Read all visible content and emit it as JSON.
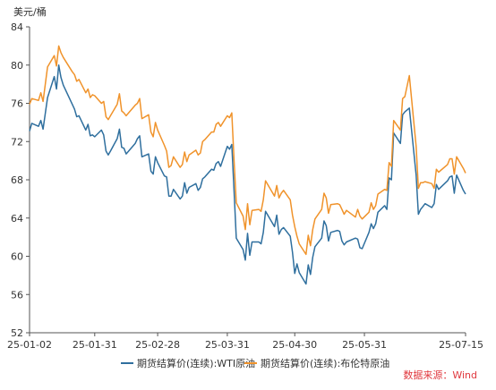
{
  "chart_data": {
    "type": "line",
    "unit_label": "美元/桶",
    "ylim": [
      52,
      84
    ],
    "y_ticks": [
      52,
      56,
      60,
      64,
      68,
      72,
      76,
      80,
      84
    ],
    "x_range": [
      "2025-01-02",
      "2025-07-15"
    ],
    "x_ticks": [
      {
        "date": "2025-01-02",
        "label": "25-01-02"
      },
      {
        "date": "2025-01-31",
        "label": "25-01-31"
      },
      {
        "date": "2025-02-28",
        "label": "25-02-28"
      },
      {
        "date": "2025-03-31",
        "label": "25-03-31"
      },
      {
        "date": "2025-04-30",
        "label": "25-04-30"
      },
      {
        "date": "2025-05-31",
        "label": "25-05-31"
      },
      {
        "date": "2025-07-15",
        "label": "25-07-15"
      }
    ],
    "grid": false,
    "legend_position": "bottom",
    "source_note": "数据来源：Wind",
    "series": [
      {
        "name": "期货结算价(连续):WTI原油",
        "color": "#2f6f9e",
        "points": [
          [
            "2025-01-02",
            73.1
          ],
          [
            "2025-01-03",
            73.9
          ],
          [
            "2025-01-06",
            73.6
          ],
          [
            "2025-01-07",
            74.2
          ],
          [
            "2025-01-08",
            73.3
          ],
          [
            "2025-01-10",
            76.6
          ],
          [
            "2025-01-13",
            78.8
          ],
          [
            "2025-01-14",
            77.5
          ],
          [
            "2025-01-15",
            80.0
          ],
          [
            "2025-01-16",
            78.7
          ],
          [
            "2025-01-17",
            77.9
          ],
          [
            "2025-01-21",
            75.9
          ],
          [
            "2025-01-22",
            75.4
          ],
          [
            "2025-01-23",
            74.6
          ],
          [
            "2025-01-24",
            74.7
          ],
          [
            "2025-01-27",
            73.2
          ],
          [
            "2025-01-28",
            73.8
          ],
          [
            "2025-01-29",
            72.6
          ],
          [
            "2025-01-30",
            72.7
          ],
          [
            "2025-01-31",
            72.5
          ],
          [
            "2025-02-03",
            73.2
          ],
          [
            "2025-02-04",
            72.7
          ],
          [
            "2025-02-05",
            71.0
          ],
          [
            "2025-02-06",
            70.6
          ],
          [
            "2025-02-07",
            71.0
          ],
          [
            "2025-02-10",
            72.3
          ],
          [
            "2025-02-11",
            73.3
          ],
          [
            "2025-02-12",
            71.4
          ],
          [
            "2025-02-13",
            71.3
          ],
          [
            "2025-02-14",
            70.7
          ],
          [
            "2025-02-18",
            71.8
          ],
          [
            "2025-02-19",
            72.3
          ],
          [
            "2025-02-20",
            72.6
          ],
          [
            "2025-02-21",
            70.4
          ],
          [
            "2025-02-24",
            70.7
          ],
          [
            "2025-02-25",
            68.9
          ],
          [
            "2025-02-26",
            68.6
          ],
          [
            "2025-02-27",
            70.4
          ],
          [
            "2025-02-28",
            69.8
          ],
          [
            "2025-03-03",
            68.4
          ],
          [
            "2025-03-04",
            68.3
          ],
          [
            "2025-03-05",
            66.3
          ],
          [
            "2025-03-06",
            66.3
          ],
          [
            "2025-03-07",
            67.0
          ],
          [
            "2025-03-10",
            66.0
          ],
          [
            "2025-03-11",
            66.3
          ],
          [
            "2025-03-12",
            67.7
          ],
          [
            "2025-03-13",
            66.6
          ],
          [
            "2025-03-14",
            67.2
          ],
          [
            "2025-03-17",
            67.6
          ],
          [
            "2025-03-18",
            66.9
          ],
          [
            "2025-03-19",
            67.2
          ],
          [
            "2025-03-20",
            68.1
          ],
          [
            "2025-03-21",
            68.3
          ],
          [
            "2025-03-24",
            69.1
          ],
          [
            "2025-03-25",
            69.0
          ],
          [
            "2025-03-26",
            69.7
          ],
          [
            "2025-03-27",
            69.9
          ],
          [
            "2025-03-28",
            69.4
          ],
          [
            "2025-03-31",
            71.5
          ],
          [
            "2025-04-01",
            71.2
          ],
          [
            "2025-04-02",
            71.7
          ],
          [
            "2025-04-03",
            66.9
          ],
          [
            "2025-04-04",
            61.9
          ],
          [
            "2025-04-07",
            60.7
          ],
          [
            "2025-04-08",
            59.6
          ],
          [
            "2025-04-09",
            62.4
          ],
          [
            "2025-04-10",
            60.1
          ],
          [
            "2025-04-11",
            61.5
          ],
          [
            "2025-04-14",
            61.5
          ],
          [
            "2025-04-15",
            61.3
          ],
          [
            "2025-04-16",
            62.5
          ],
          [
            "2025-04-17",
            64.7
          ],
          [
            "2025-04-21",
            63.1
          ],
          [
            "2025-04-22",
            64.3
          ],
          [
            "2025-04-23",
            62.3
          ],
          [
            "2025-04-24",
            62.8
          ],
          [
            "2025-04-25",
            63.0
          ],
          [
            "2025-04-28",
            62.1
          ],
          [
            "2025-04-29",
            60.4
          ],
          [
            "2025-04-30",
            58.2
          ],
          [
            "2025-05-01",
            59.2
          ],
          [
            "2025-05-02",
            58.3
          ],
          [
            "2025-05-05",
            57.1
          ],
          [
            "2025-05-06",
            59.1
          ],
          [
            "2025-05-07",
            58.1
          ],
          [
            "2025-05-08",
            59.9
          ],
          [
            "2025-05-09",
            61.0
          ],
          [
            "2025-05-12",
            61.9
          ],
          [
            "2025-05-13",
            63.7
          ],
          [
            "2025-05-14",
            63.2
          ],
          [
            "2025-05-15",
            61.6
          ],
          [
            "2025-05-16",
            62.5
          ],
          [
            "2025-05-19",
            62.7
          ],
          [
            "2025-05-20",
            62.6
          ],
          [
            "2025-05-21",
            61.6
          ],
          [
            "2025-05-22",
            61.2
          ],
          [
            "2025-05-23",
            61.5
          ],
          [
            "2025-05-27",
            61.9
          ],
          [
            "2025-05-28",
            61.8
          ],
          [
            "2025-05-29",
            60.9
          ],
          [
            "2025-05-30",
            60.8
          ],
          [
            "2025-06-02",
            62.5
          ],
          [
            "2025-06-03",
            63.4
          ],
          [
            "2025-06-04",
            62.9
          ],
          [
            "2025-06-05",
            63.4
          ],
          [
            "2025-06-06",
            64.6
          ],
          [
            "2025-06-09",
            65.3
          ],
          [
            "2025-06-10",
            64.9
          ],
          [
            "2025-06-11",
            68.2
          ],
          [
            "2025-06-12",
            68.0
          ],
          [
            "2025-06-13",
            72.9
          ],
          [
            "2025-06-16",
            71.8
          ],
          [
            "2025-06-17",
            74.8
          ],
          [
            "2025-06-18",
            75.1
          ],
          [
            "2025-06-20",
            75.5
          ],
          [
            "2025-06-23",
            68.5
          ],
          [
            "2025-06-24",
            64.4
          ],
          [
            "2025-06-25",
            64.9
          ],
          [
            "2025-06-26",
            65.2
          ],
          [
            "2025-06-27",
            65.5
          ],
          [
            "2025-06-30",
            65.1
          ],
          [
            "2025-07-01",
            65.5
          ],
          [
            "2025-07-02",
            67.5
          ],
          [
            "2025-07-03",
            67.0
          ],
          [
            "2025-07-07",
            67.9
          ],
          [
            "2025-07-08",
            68.3
          ],
          [
            "2025-07-09",
            68.4
          ],
          [
            "2025-07-10",
            66.6
          ],
          [
            "2025-07-11",
            68.5
          ],
          [
            "2025-07-14",
            66.9
          ],
          [
            "2025-07-15",
            66.5
          ]
        ]
      },
      {
        "name": "期货结算价(连续):布伦特原油",
        "color": "#f0932b",
        "points": [
          [
            "2025-01-02",
            75.9
          ],
          [
            "2025-01-03",
            76.5
          ],
          [
            "2025-01-06",
            76.3
          ],
          [
            "2025-01-07",
            77.1
          ],
          [
            "2025-01-08",
            76.2
          ],
          [
            "2025-01-10",
            79.8
          ],
          [
            "2025-01-13",
            81.0
          ],
          [
            "2025-01-14",
            79.9
          ],
          [
            "2025-01-15",
            82.0
          ],
          [
            "2025-01-16",
            81.3
          ],
          [
            "2025-01-17",
            80.8
          ],
          [
            "2025-01-21",
            79.3
          ],
          [
            "2025-01-22",
            79.0
          ],
          [
            "2025-01-23",
            78.3
          ],
          [
            "2025-01-24",
            78.5
          ],
          [
            "2025-01-27",
            77.1
          ],
          [
            "2025-01-28",
            77.5
          ],
          [
            "2025-01-29",
            76.6
          ],
          [
            "2025-01-30",
            76.9
          ],
          [
            "2025-01-31",
            76.8
          ],
          [
            "2025-02-03",
            76.0
          ],
          [
            "2025-02-04",
            76.2
          ],
          [
            "2025-02-05",
            74.6
          ],
          [
            "2025-02-06",
            74.3
          ],
          [
            "2025-02-07",
            74.7
          ],
          [
            "2025-02-10",
            75.9
          ],
          [
            "2025-02-11",
            77.0
          ],
          [
            "2025-02-12",
            75.2
          ],
          [
            "2025-02-13",
            75.0
          ],
          [
            "2025-02-14",
            74.7
          ],
          [
            "2025-02-18",
            75.8
          ],
          [
            "2025-02-19",
            76.0
          ],
          [
            "2025-02-20",
            76.5
          ],
          [
            "2025-02-21",
            74.4
          ],
          [
            "2025-02-24",
            74.8
          ],
          [
            "2025-02-25",
            73.0
          ],
          [
            "2025-02-26",
            72.5
          ],
          [
            "2025-02-27",
            74.0
          ],
          [
            "2025-02-28",
            73.2
          ],
          [
            "2025-03-03",
            71.6
          ],
          [
            "2025-03-04",
            71.0
          ],
          [
            "2025-03-05",
            69.3
          ],
          [
            "2025-03-06",
            69.5
          ],
          [
            "2025-03-07",
            70.4
          ],
          [
            "2025-03-10",
            69.3
          ],
          [
            "2025-03-11",
            69.6
          ],
          [
            "2025-03-12",
            70.9
          ],
          [
            "2025-03-13",
            69.9
          ],
          [
            "2025-03-14",
            70.6
          ],
          [
            "2025-03-17",
            71.1
          ],
          [
            "2025-03-18",
            70.6
          ],
          [
            "2025-03-19",
            70.8
          ],
          [
            "2025-03-20",
            72.0
          ],
          [
            "2025-03-21",
            72.2
          ],
          [
            "2025-03-24",
            73.0
          ],
          [
            "2025-03-25",
            73.0
          ],
          [
            "2025-03-26",
            73.8
          ],
          [
            "2025-03-27",
            74.0
          ],
          [
            "2025-03-28",
            73.6
          ],
          [
            "2025-03-31",
            74.7
          ],
          [
            "2025-04-01",
            74.5
          ],
          [
            "2025-04-02",
            75.0
          ],
          [
            "2025-04-03",
            70.1
          ],
          [
            "2025-04-04",
            65.6
          ],
          [
            "2025-04-07",
            64.2
          ],
          [
            "2025-04-08",
            62.8
          ],
          [
            "2025-04-09",
            65.5
          ],
          [
            "2025-04-10",
            63.3
          ],
          [
            "2025-04-11",
            64.8
          ],
          [
            "2025-04-14",
            64.9
          ],
          [
            "2025-04-15",
            64.7
          ],
          [
            "2025-04-16",
            65.9
          ],
          [
            "2025-04-17",
            67.9
          ],
          [
            "2025-04-21",
            66.3
          ],
          [
            "2025-04-22",
            67.4
          ],
          [
            "2025-04-23",
            66.1
          ],
          [
            "2025-04-24",
            66.6
          ],
          [
            "2025-04-25",
            66.9
          ],
          [
            "2025-04-28",
            65.9
          ],
          [
            "2025-04-29",
            64.3
          ],
          [
            "2025-04-30",
            63.1
          ],
          [
            "2025-05-01",
            62.1
          ],
          [
            "2025-05-02",
            61.3
          ],
          [
            "2025-05-05",
            60.2
          ],
          [
            "2025-05-06",
            62.2
          ],
          [
            "2025-05-07",
            61.1
          ],
          [
            "2025-05-08",
            62.8
          ],
          [
            "2025-05-09",
            63.9
          ],
          [
            "2025-05-12",
            64.9
          ],
          [
            "2025-05-13",
            66.6
          ],
          [
            "2025-05-14",
            66.1
          ],
          [
            "2025-05-15",
            64.5
          ],
          [
            "2025-05-16",
            65.4
          ],
          [
            "2025-05-19",
            65.5
          ],
          [
            "2025-05-20",
            65.4
          ],
          [
            "2025-05-21",
            64.9
          ],
          [
            "2025-05-22",
            64.4
          ],
          [
            "2025-05-23",
            64.8
          ],
          [
            "2025-05-27",
            64.1
          ],
          [
            "2025-05-28",
            64.9
          ],
          [
            "2025-05-29",
            64.2
          ],
          [
            "2025-05-30",
            63.9
          ],
          [
            "2025-06-02",
            64.6
          ],
          [
            "2025-06-03",
            65.6
          ],
          [
            "2025-06-04",
            64.9
          ],
          [
            "2025-06-05",
            65.3
          ],
          [
            "2025-06-06",
            66.5
          ],
          [
            "2025-06-09",
            67.0
          ],
          [
            "2025-06-10",
            66.9
          ],
          [
            "2025-06-11",
            69.8
          ],
          [
            "2025-06-12",
            69.4
          ],
          [
            "2025-06-13",
            74.2
          ],
          [
            "2025-06-16",
            73.2
          ],
          [
            "2025-06-17",
            76.5
          ],
          [
            "2025-06-18",
            76.7
          ],
          [
            "2025-06-20",
            78.9
          ],
          [
            "2025-06-23",
            71.5
          ],
          [
            "2025-06-24",
            67.1
          ],
          [
            "2025-06-25",
            67.7
          ],
          [
            "2025-06-26",
            67.7
          ],
          [
            "2025-06-27",
            67.8
          ],
          [
            "2025-06-30",
            67.6
          ],
          [
            "2025-07-01",
            67.1
          ],
          [
            "2025-07-02",
            69.1
          ],
          [
            "2025-07-03",
            68.8
          ],
          [
            "2025-07-07",
            69.6
          ],
          [
            "2025-07-08",
            70.2
          ],
          [
            "2025-07-09",
            70.2
          ],
          [
            "2025-07-10",
            68.6
          ],
          [
            "2025-07-11",
            70.4
          ],
          [
            "2025-07-14",
            69.2
          ],
          [
            "2025-07-15",
            68.7
          ]
        ]
      }
    ]
  }
}
